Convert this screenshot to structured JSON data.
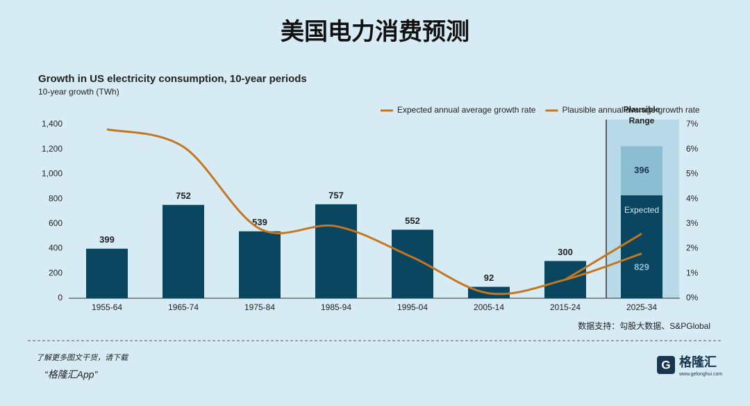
{
  "title": "美国电力消费预测",
  "chart_data": {
    "type": "bar",
    "stacked": true,
    "title": "Growth in US electricity consumption, 10-year periods",
    "subtitle": "10-year growth (TWh)",
    "categories": [
      "1955-64",
      "1965-74",
      "1975-84",
      "1985-94",
      "1995-04",
      "2005-14",
      "2015-24",
      "2025-34"
    ],
    "series": [
      {
        "name": "Expected",
        "color": "#0b4660",
        "values": [
          399,
          752,
          539,
          757,
          552,
          92,
          300,
          829
        ]
      },
      {
        "name": "Plausible Range",
        "color": "#8bbdd3",
        "values": [
          null,
          null,
          null,
          null,
          null,
          null,
          null,
          396
        ]
      },
      {
        "name": "Expected annual average growth rate",
        "color": "#c47620",
        "axis": "y2",
        "values": [
          6.8,
          6.1,
          2.8,
          2.9,
          1.65,
          0.2,
          0.75,
          1.8
        ]
      },
      {
        "name": "Plausible annual average growth rate",
        "color": "#c47620",
        "axis": "y2",
        "values": [
          null,
          null,
          null,
          null,
          null,
          null,
          0.75,
          2.6
        ]
      }
    ],
    "ylim": [
      0,
      1400
    ],
    "yticks": [
      0,
      200,
      400,
      600,
      800,
      {
        "value": 1000,
        "label": "1,000"
      },
      {
        "value": 1200,
        "label": "1,200"
      },
      {
        "value": 1400,
        "label": "1,400"
      }
    ],
    "y2lim": [
      0,
      7
    ],
    "y2ticks": [
      {
        "value": 0,
        "label": "0%"
      },
      {
        "value": 1,
        "label": "1%"
      },
      {
        "value": 2,
        "label": "2%"
      },
      {
        "value": 3,
        "label": "3%"
      },
      {
        "value": 4,
        "label": "4%"
      },
      {
        "value": 5,
        "label": "5%"
      },
      {
        "value": 6,
        "label": "6%"
      },
      {
        "value": 7,
        "label": "7%"
      }
    ],
    "legend": "upper right",
    "source": "数据支持：勾股大数据、S&PGlobal"
  },
  "footer": {
    "line1": "了解更多图文干货，请下载",
    "line2": "“格隆汇App”",
    "logo": "格隆汇",
    "site": "www.gelonghui.com"
  }
}
